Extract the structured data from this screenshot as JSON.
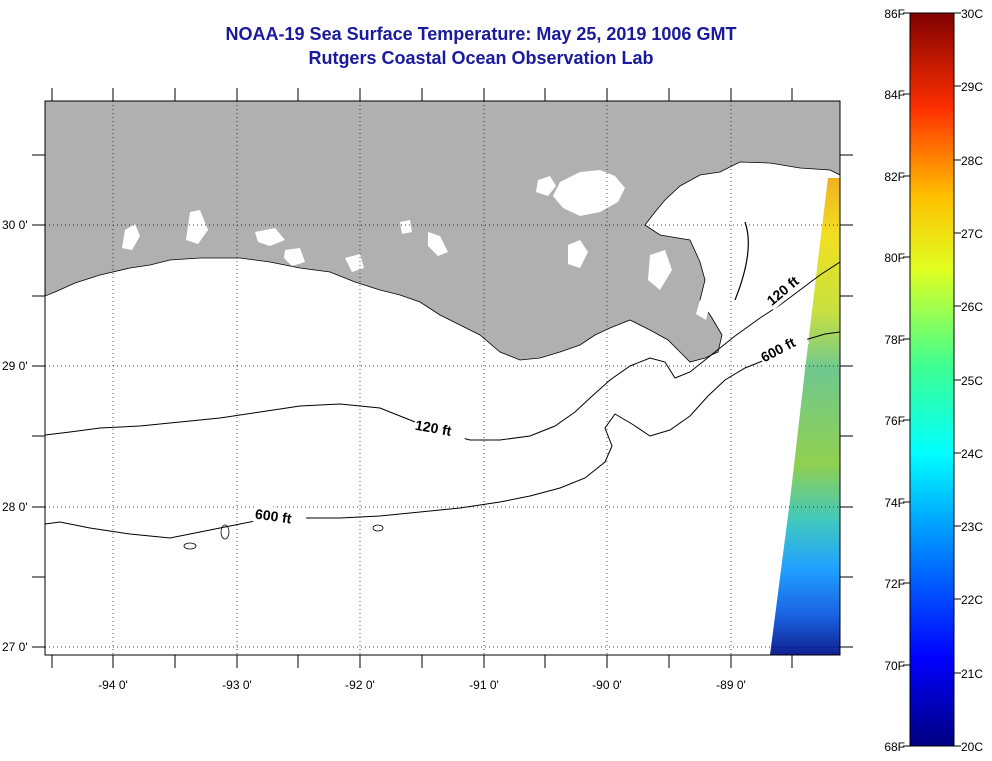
{
  "title": {
    "line1": "NOAA-19 Sea Surface Temperature:  May 25, 2019 1006 GMT",
    "line2": "Rutgers Coastal Ocean Observation Lab"
  },
  "map": {
    "latitude_labels": [
      "30 0'",
      "29 0'",
      "28 0'",
      "27 0'"
    ],
    "longitude_labels": [
      "-94 0'",
      "-93 0'",
      "-92 0'",
      "-91 0'",
      "-90 0'",
      "-89 0'"
    ],
    "contour_labels": [
      {
        "text": "120 ft",
        "depth": "shelf"
      },
      {
        "text": "600 ft",
        "depth": "slope"
      },
      {
        "text": "120 ft",
        "depth": "shelf-east"
      },
      {
        "text": "600 ft",
        "depth": "slope-east"
      }
    ],
    "colors": {
      "land": "#b0b0b0",
      "water": "#ffffff",
      "grid": "#000000"
    }
  },
  "colorbar": {
    "fahrenheit_labels": [
      "86F",
      "84F",
      "82F",
      "80F",
      "78F",
      "76F",
      "74F",
      "72F",
      "70F",
      "68F"
    ],
    "celsius_labels": [
      "30C",
      "29C",
      "28C",
      "27C",
      "26C",
      "25C",
      "24C",
      "23C",
      "22C",
      "21C",
      "20C"
    ]
  }
}
